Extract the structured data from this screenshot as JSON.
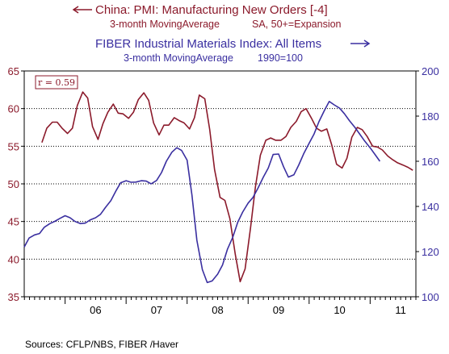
{
  "legend": {
    "series1_title": "China: PMI: Manufacturing New Orders [-4]",
    "series1_note_left": "3-month MovingAverage",
    "series1_note_right": "SA, 50+=Expansion",
    "series2_title": "FIBER Industrial Materials Index: All Items",
    "series2_note_left": "3-month MovingAverage",
    "series2_note_right": "1990=100"
  },
  "annotation": "r = 0.59",
  "source": "Sources:  CFLP/NBS, FIBER /Haver",
  "colors": {
    "pmi": "#8b1a2b",
    "fiber": "#3a2fa0",
    "left_axis": "#8b1a2b",
    "right_axis": "#3a2fa0",
    "grid": "#000000"
  },
  "chart_data": {
    "type": "line",
    "x_tick_labels": [
      "06",
      "07",
      "08",
      "09",
      "10",
      "11"
    ],
    "x_range": [
      2005.33,
      2011.75
    ],
    "left_axis": {
      "ticks": [
        35,
        40,
        45,
        50,
        55,
        60,
        65
      ],
      "ylim": [
        35,
        65
      ]
    },
    "right_axis": {
      "ticks": [
        100,
        120,
        140,
        160,
        180,
        200
      ],
      "ylim": [
        100,
        200
      ]
    },
    "grid": "horizontal dotted",
    "series": [
      {
        "name": "China: PMI: Manufacturing New Orders [-4]",
        "axis": "left",
        "x": [
          2005.62,
          2005.7,
          2005.79,
          2005.87,
          2005.95,
          2006.04,
          2006.12,
          2006.2,
          2006.29,
          2006.37,
          2006.45,
          2006.54,
          2006.62,
          2006.7,
          2006.79,
          2006.87,
          2006.95,
          2007.04,
          2007.12,
          2007.2,
          2007.29,
          2007.37,
          2007.45,
          2007.54,
          2007.62,
          2007.7,
          2007.79,
          2007.87,
          2007.95,
          2008.04,
          2008.12,
          2008.2,
          2008.29,
          2008.37,
          2008.45,
          2008.54,
          2008.62,
          2008.7,
          2008.79,
          2008.87,
          2008.95,
          2009.04,
          2009.12,
          2009.2,
          2009.29,
          2009.37,
          2009.45,
          2009.54,
          2009.62,
          2009.7,
          2009.79,
          2009.87,
          2009.95,
          2010.04,
          2010.12,
          2010.2,
          2010.29,
          2010.37,
          2010.45,
          2010.54,
          2010.62,
          2010.7,
          2010.79,
          2010.87,
          2010.95,
          2011.04,
          2011.12,
          2011.2,
          2011.29,
          2011.37,
          2011.45,
          2011.54,
          2011.62,
          2011.7
        ],
        "values": [
          55.5,
          57.4,
          58.2,
          58.2,
          57.4,
          56.7,
          57.4,
          60.4,
          62.2,
          61.4,
          57.6,
          55.9,
          58.0,
          59.5,
          60.6,
          59.4,
          59.3,
          58.7,
          59.5,
          61.2,
          62.1,
          61.1,
          58.1,
          56.5,
          57.8,
          57.8,
          58.8,
          58.4,
          58.1,
          57.3,
          58.8,
          61.8,
          61.3,
          57.2,
          51.9,
          48.2,
          47.8,
          45.4,
          40.6,
          37.0,
          38.7,
          44.2,
          49.6,
          53.8,
          55.8,
          56.1,
          55.8,
          55.8,
          56.3,
          57.5,
          58.3,
          59.6,
          60.0,
          58.7,
          57.4,
          57.0,
          57.3,
          55.2,
          52.6,
          52.1,
          53.4,
          56.2,
          57.5,
          57.2,
          56.3,
          55.0,
          54.9,
          54.5,
          53.7,
          53.2,
          52.8,
          52.5,
          52.2,
          51.8
        ],
        "color": "#8b1a2b"
      },
      {
        "name": "FIBER Industrial Materials Index: All Items",
        "axis": "right",
        "x": [
          2005.33,
          2005.41,
          2005.5,
          2005.58,
          2005.66,
          2005.75,
          2005.83,
          2005.91,
          2006.0,
          2006.08,
          2006.16,
          2006.25,
          2006.33,
          2006.41,
          2006.5,
          2006.58,
          2006.66,
          2006.75,
          2006.83,
          2006.91,
          2007.0,
          2007.08,
          2007.16,
          2007.25,
          2007.33,
          2007.41,
          2007.5,
          2007.58,
          2007.66,
          2007.75,
          2007.83,
          2007.91,
          2008.0,
          2008.08,
          2008.16,
          2008.25,
          2008.33,
          2008.41,
          2008.5,
          2008.58,
          2008.66,
          2008.75,
          2008.83,
          2008.91,
          2009.0,
          2009.08,
          2009.16,
          2009.25,
          2009.33,
          2009.41,
          2009.5,
          2009.58,
          2009.66,
          2009.75,
          2009.83,
          2009.91,
          2010.0,
          2010.08,
          2010.16,
          2010.25,
          2010.33,
          2010.41,
          2010.5,
          2010.58,
          2010.66,
          2010.75,
          2010.83,
          2010.91,
          2011.0,
          2011.08,
          2011.16
        ],
        "values": [
          122.0,
          126.0,
          127.4,
          128.0,
          130.8,
          132.4,
          133.4,
          134.6,
          135.9,
          135.0,
          133.4,
          132.4,
          132.6,
          134.0,
          135.0,
          136.5,
          139.5,
          142.6,
          146.7,
          150.5,
          151.4,
          150.7,
          150.8,
          151.4,
          151.2,
          150.0,
          151.5,
          155.0,
          160.0,
          164.0,
          166.0,
          164.8,
          160.5,
          145.0,
          125.0,
          112.0,
          106.3,
          107.0,
          110.0,
          114.0,
          121.0,
          126.5,
          133.0,
          137.5,
          141.5,
          144.0,
          148.0,
          153.0,
          157.0,
          163.0,
          163.2,
          157.6,
          153.0,
          154.0,
          158.4,
          163.3,
          168.0,
          172.0,
          177.5,
          182.5,
          186.5,
          185.0,
          183.5,
          181.0,
          178.0,
          175.0,
          172.0,
          169.0,
          166.0,
          163.0,
          160.0
        ],
        "color": "#3a2fa0"
      }
    ]
  }
}
